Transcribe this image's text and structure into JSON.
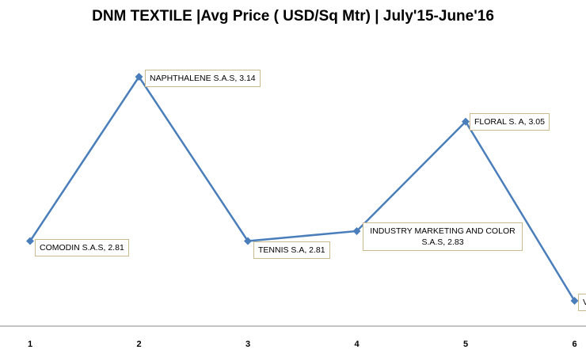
{
  "chart_data": {
    "type": "line",
    "title": "DNM TEXTILE  |Avg Price ( USD/Sq Mtr) | July'15-June'16",
    "xlabel": "",
    "ylabel": "",
    "x": [
      "1",
      "2",
      "3",
      "4",
      "5",
      "6"
    ],
    "ylim": [
      2.65,
      3.2
    ],
    "grid": false,
    "series": [
      {
        "values": [
          2.81,
          3.14,
          2.81,
          2.83,
          3.05,
          2.69
        ],
        "color": "#4a7ebb"
      }
    ],
    "point_labels": [
      "COMODIN S.A.S, 2.81",
      "NAPHTHALENE S.A.S, 3.14",
      "TENNIS S.A, 2.81",
      "INDUSTRY MARKETING  AND COLOR S.A.S, 2.83",
      "FLORAL S. A, 3.05",
      "V"
    ]
  }
}
